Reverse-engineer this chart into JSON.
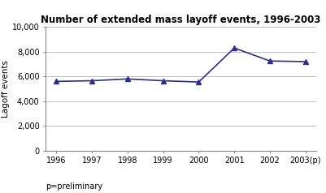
{
  "title": "Number of extended mass layoff events, 1996-2003",
  "years": [
    1996,
    1997,
    1998,
    1999,
    2000,
    2001,
    2002,
    2003
  ],
  "x_labels": [
    "1996",
    "1997",
    "1998",
    "1999",
    "2000",
    "2001",
    "2002",
    "2003(p)"
  ],
  "values": [
    5600,
    5650,
    5800,
    5650,
    5550,
    8300,
    7250,
    7200
  ],
  "ylabel": "Lagoff events",
  "ylim": [
    0,
    10000
  ],
  "yticks": [
    0,
    2000,
    4000,
    6000,
    8000,
    10000
  ],
  "note": "p=preliminary",
  "line_color": "#2E2E8B",
  "marker": "^",
  "marker_size": 5,
  "bg_color": "#ffffff",
  "plot_bg_color": "#ffffff",
  "grid_color": "#c0c0c0",
  "title_fontsize": 8.5,
  "label_fontsize": 7.5,
  "tick_fontsize": 7
}
